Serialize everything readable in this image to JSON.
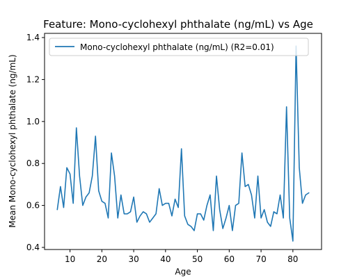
{
  "chart_data": {
    "type": "line",
    "title": "Feature: Mono-cyclohexyl phthalate (ng/mL) vs Age",
    "xlabel": "Age",
    "ylabel": "Mean Mono-cyclohexyl phthalate (ng/mL)",
    "xlim": [
      2,
      89
    ],
    "ylim": [
      0.39,
      1.42
    ],
    "xticks": [
      10,
      20,
      30,
      40,
      50,
      60,
      70,
      80
    ],
    "yticks": [
      0.4,
      0.6,
      0.8,
      1.0,
      1.2,
      1.4
    ],
    "ytick_labels": [
      "0.4",
      "0.6",
      "0.8",
      "1.0",
      "1.2",
      "1.4"
    ],
    "grid": false,
    "legend_position": "top-right",
    "series": [
      {
        "name": "Mono-cyclohexyl phthalate (ng/mL) (R2=0.01)",
        "color": "#1f77b4",
        "x": [
          6,
          7,
          8,
          9,
          10,
          11,
          12,
          13,
          14,
          15,
          16,
          17,
          18,
          19,
          20,
          21,
          22,
          23,
          24,
          25,
          26,
          27,
          28,
          29,
          30,
          31,
          32,
          33,
          34,
          35,
          36,
          37,
          38,
          39,
          40,
          41,
          42,
          43,
          44,
          45,
          46,
          47,
          48,
          49,
          50,
          51,
          52,
          53,
          54,
          55,
          56,
          57,
          58,
          59,
          60,
          61,
          62,
          63,
          64,
          65,
          66,
          67,
          68,
          69,
          70,
          71,
          72,
          73,
          74,
          75,
          76,
          77,
          78,
          79,
          80,
          81,
          82,
          83,
          84,
          85
        ],
        "y": [
          0.58,
          0.69,
          0.59,
          0.78,
          0.75,
          0.61,
          0.97,
          0.74,
          0.6,
          0.64,
          0.66,
          0.74,
          0.93,
          0.67,
          0.62,
          0.61,
          0.54,
          0.85,
          0.74,
          0.54,
          0.65,
          0.56,
          0.56,
          0.57,
          0.64,
          0.52,
          0.55,
          0.57,
          0.56,
          0.52,
          0.54,
          0.56,
          0.68,
          0.6,
          0.61,
          0.61,
          0.55,
          0.63,
          0.59,
          0.87,
          0.55,
          0.51,
          0.5,
          0.48,
          0.56,
          0.56,
          0.53,
          0.6,
          0.65,
          0.48,
          0.74,
          0.58,
          0.49,
          0.54,
          0.6,
          0.48,
          0.6,
          0.61,
          0.85,
          0.69,
          0.7,
          0.65,
          0.54,
          0.74,
          0.54,
          0.58,
          0.52,
          0.5,
          0.57,
          0.56,
          0.65,
          0.54,
          1.07,
          0.54,
          0.43,
          1.36,
          0.78,
          0.61,
          0.65,
          0.66
        ]
      }
    ]
  }
}
